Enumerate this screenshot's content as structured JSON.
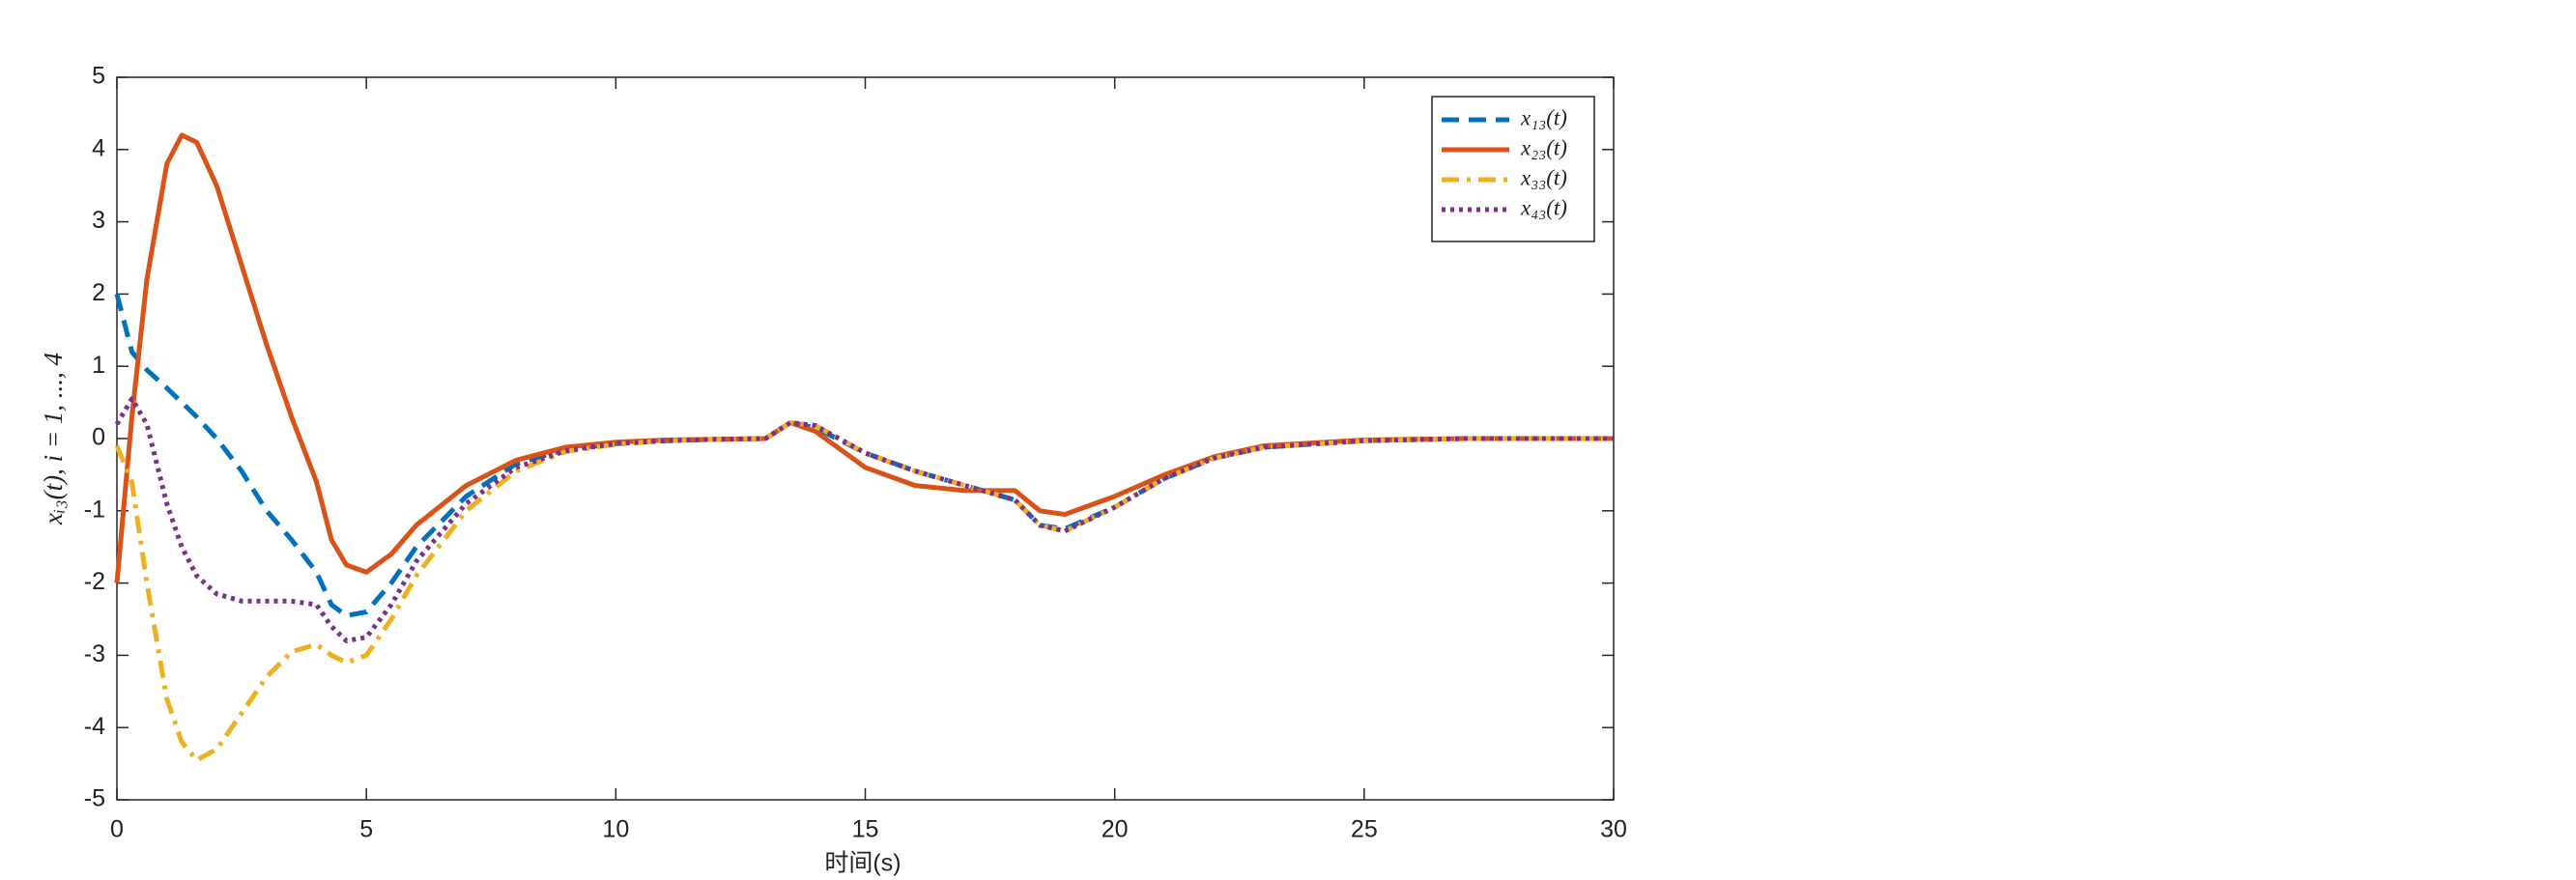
{
  "chart_data": {
    "type": "line",
    "xlabel": "时间(s)",
    "ylabel": "xᵢ₃(t), i = 1, ..., 4",
    "x": [
      0,
      0.3,
      0.6,
      1,
      1.3,
      1.6,
      2,
      2.5,
      3,
      3.5,
      4,
      4.3,
      4.6,
      5,
      5.5,
      6,
      7,
      8,
      9,
      10,
      11,
      12,
      13,
      13.5,
      14,
      15,
      16,
      17,
      18,
      18.5,
      19,
      20,
      21,
      22,
      23,
      25,
      27,
      30
    ],
    "series": [
      {
        "name": "x₁₃(t)",
        "color": "#0072bd",
        "dash": "dashed",
        "values": [
          2,
          1.2,
          0.95,
          0.7,
          0.5,
          0.3,
          0.0,
          -0.45,
          -1.0,
          -1.4,
          -1.85,
          -2.3,
          -2.45,
          -2.4,
          -2.0,
          -1.5,
          -0.8,
          -0.35,
          -0.15,
          -0.07,
          -0.03,
          -0.01,
          0,
          0.22,
          0.15,
          -0.2,
          -0.45,
          -0.65,
          -0.85,
          -1.2,
          -1.25,
          -0.95,
          -0.55,
          -0.27,
          -0.12,
          -0.03,
          0,
          0
        ]
      },
      {
        "name": "x₂₃(t)",
        "color": "#d95319",
        "dash": "solid",
        "values": [
          -2,
          0.3,
          2.2,
          3.8,
          4.2,
          4.1,
          3.5,
          2.4,
          1.3,
          0.3,
          -0.6,
          -1.4,
          -1.75,
          -1.85,
          -1.6,
          -1.2,
          -0.65,
          -0.3,
          -0.12,
          -0.05,
          -0.02,
          -0.01,
          0,
          0.22,
          0.1,
          -0.4,
          -0.65,
          -0.72,
          -0.72,
          -1.0,
          -1.05,
          -0.8,
          -0.5,
          -0.25,
          -0.1,
          -0.02,
          0,
          0
        ]
      },
      {
        "name": "x₃₃(t)",
        "color": "#edb120",
        "dash": "dashdot",
        "values": [
          -0.1,
          -0.6,
          -2.0,
          -3.6,
          -4.2,
          -4.45,
          -4.3,
          -3.8,
          -3.3,
          -2.95,
          -2.85,
          -3.0,
          -3.1,
          -3.0,
          -2.5,
          -1.9,
          -1.0,
          -0.45,
          -0.18,
          -0.08,
          -0.03,
          -0.01,
          0,
          0.22,
          0.18,
          -0.2,
          -0.45,
          -0.65,
          -0.85,
          -1.2,
          -1.28,
          -0.95,
          -0.55,
          -0.27,
          -0.12,
          -0.03,
          0,
          0
        ]
      },
      {
        "name": "x₄₃(t)",
        "color": "#7e2f8e",
        "dash": "dotted",
        "values": [
          0.2,
          0.55,
          0.2,
          -0.9,
          -1.5,
          -1.9,
          -2.15,
          -2.25,
          -2.25,
          -2.25,
          -2.3,
          -2.6,
          -2.8,
          -2.75,
          -2.3,
          -1.7,
          -0.9,
          -0.4,
          -0.17,
          -0.07,
          -0.03,
          -0.01,
          0,
          0.22,
          0.18,
          -0.2,
          -0.45,
          -0.65,
          -0.85,
          -1.2,
          -1.28,
          -0.95,
          -0.55,
          -0.27,
          -0.12,
          -0.03,
          0,
          0
        ]
      }
    ],
    "xlim": [
      0,
      30
    ],
    "xticks": [
      0,
      5,
      10,
      15,
      20,
      25,
      30
    ],
    "ylim": [
      -5,
      5
    ],
    "yticks": [
      -5,
      -4,
      -3,
      -2,
      -1,
      0,
      1,
      2,
      3,
      4,
      5
    ],
    "legend": "top-right"
  }
}
